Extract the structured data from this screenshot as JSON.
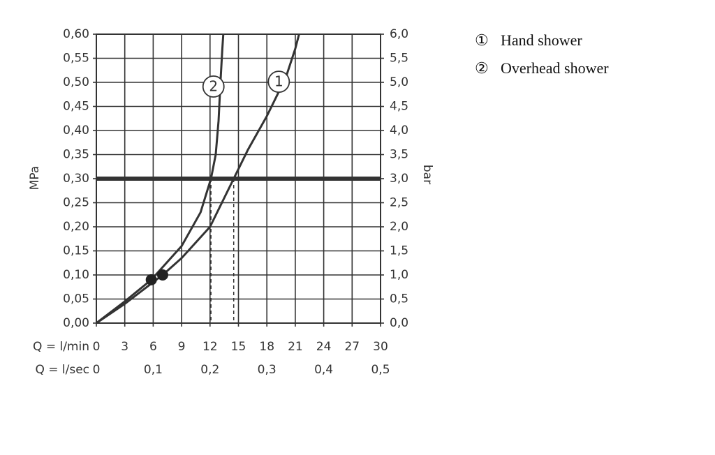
{
  "chart_data": {
    "type": "line",
    "y_label": "MPa",
    "y2_label": "bar",
    "x_label": "Q = l/min",
    "x2_label": "Q = l/sec",
    "xlim": [
      0,
      30
    ],
    "xticks": [
      0,
      3,
      6,
      9,
      12,
      15,
      18,
      21,
      24,
      27,
      30
    ],
    "x2lim": [
      0,
      0.5
    ],
    "x2ticks": [
      0,
      {
        "value": 0.1,
        "label": "0,1"
      },
      {
        "value": 0.2,
        "label": "0,2"
      },
      {
        "value": 0.3,
        "label": "0,3"
      },
      {
        "value": 0.4,
        "label": "0,4"
      },
      {
        "value": 0.5,
        "label": "0,5"
      }
    ],
    "ylim": [
      0,
      0.6
    ],
    "yticks": [
      {
        "value": 0,
        "label": "0,00"
      },
      {
        "value": 0.05,
        "label": "0,05"
      },
      {
        "value": 0.1,
        "label": "0,10"
      },
      {
        "value": 0.15,
        "label": "0,15"
      },
      {
        "value": 0.2,
        "label": "0,20"
      },
      {
        "value": 0.25,
        "label": "0,25"
      },
      {
        "value": 0.3,
        "label": "0,30"
      },
      {
        "value": 0.35,
        "label": "0,35"
      },
      {
        "value": 0.4,
        "label": "0,40"
      },
      {
        "value": 0.45,
        "label": "0,45"
      },
      {
        "value": 0.5,
        "label": "0,50"
      },
      {
        "value": 0.55,
        "label": "0,55"
      },
      {
        "value": 0.6,
        "label": "0,60"
      }
    ],
    "y2lim": [
      0,
      6
    ],
    "y2ticks": [
      {
        "value": 0,
        "label": "0,0"
      },
      {
        "value": 0.5,
        "label": "0,5"
      },
      {
        "value": 1,
        "label": "1,0"
      },
      {
        "value": 1.5,
        "label": "1,5"
      },
      {
        "value": 2,
        "label": "2,0"
      },
      {
        "value": 2.5,
        "label": "2,5"
      },
      {
        "value": 3,
        "label": "3,0"
      },
      {
        "value": 3.5,
        "label": "3,5"
      },
      {
        "value": 4,
        "label": "4,0"
      },
      {
        "value": 4.5,
        "label": "4,5"
      },
      {
        "value": 5,
        "label": "5,0"
      },
      {
        "value": 5.5,
        "label": "5,5"
      },
      {
        "value": 6,
        "label": "6,0"
      }
    ],
    "grid": true,
    "threshold": 0.3,
    "drop_lines": [
      12.1,
      14.5
    ],
    "points": [
      {
        "x": 5.8,
        "y": 0.09
      },
      {
        "x": 7,
        "y": 0.1
      }
    ],
    "series": [
      {
        "name": "Hand shower",
        "symbol": "①",
        "label": "1",
        "color": "#333333",
        "x": [
          0,
          3,
          6,
          7,
          9,
          12,
          14.5,
          16,
          18,
          20,
          21,
          21.4
        ],
        "values": [
          0,
          0.04,
          0.085,
          0.1,
          0.135,
          0.2,
          0.3,
          0.36,
          0.43,
          0.51,
          0.57,
          0.6
        ]
      },
      {
        "name": "Overhead shower",
        "symbol": "②",
        "label": "2",
        "color": "#333333",
        "x": [
          0,
          3,
          5.8,
          9,
          11,
          12.1,
          12.6,
          12.9,
          13.1,
          13.3,
          13.4
        ],
        "values": [
          0,
          0.045,
          0.09,
          0.16,
          0.23,
          0.3,
          0.35,
          0.42,
          0.5,
          0.57,
          0.6
        ]
      }
    ]
  }
}
